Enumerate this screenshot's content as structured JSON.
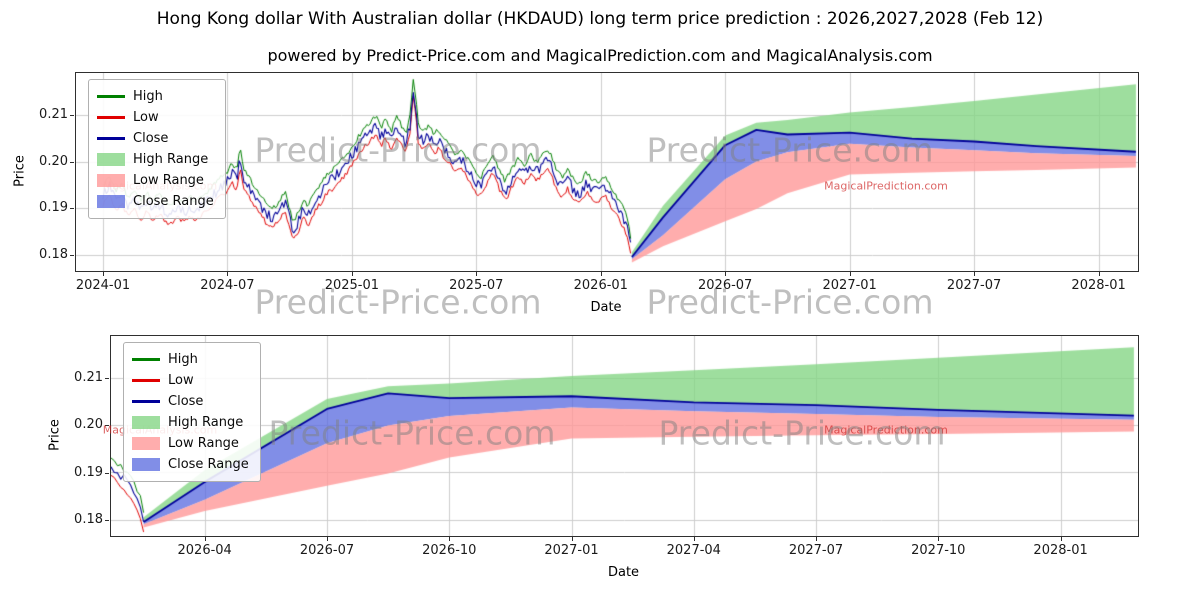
{
  "title": "Hong Kong dollar With Australian dollar (HKDAUD) long term price prediction : 2026,2027,2028 (Feb 12)",
  "subtitle": "powered by Predict-Price.com and MagicalPrediction.com and MagicalAnalysis.com",
  "watermark": {
    "text": "Predict-Price.com",
    "small_left": "MagicalAnalysis.com",
    "small_right": "MagicalPrediction.com"
  },
  "colors": {
    "high": "#008000",
    "low": "#e00000",
    "close": "#000099",
    "high_range": "rgba(134,214,134,0.8)",
    "low_range": "rgba(255,152,152,0.8)",
    "close_range": "rgba(93,110,224,0.78)",
    "grid": "#cccccc",
    "watermark": "rgba(128,128,128,0.5)",
    "watermark_red": "rgba(205,35,35,0.7)"
  },
  "legend": [
    {
      "label": "High",
      "type": "line",
      "color_key": "high"
    },
    {
      "label": "Low",
      "type": "line",
      "color_key": "low"
    },
    {
      "label": "Close",
      "type": "line",
      "color_key": "close"
    },
    {
      "label": "High Range",
      "type": "patch",
      "color_key": "high_range"
    },
    {
      "label": "Low Range",
      "type": "patch",
      "color_key": "low_range"
    },
    {
      "label": "Close Range",
      "type": "patch",
      "color_key": "close_range"
    }
  ],
  "chart_data": {
    "type": "line",
    "x_unit": "months since 2024-01",
    "series": {
      "history": {
        "names": [
          "High",
          "Low",
          "Close"
        ],
        "high_offset": 0.0015,
        "low_offset": 0.0015,
        "noise_amplitude": 0.0011,
        "close_keypoints": [
          [
            0,
            0.1928
          ],
          [
            0.3,
            0.1948
          ],
          [
            0.6,
            0.1915
          ],
          [
            0.9,
            0.1932
          ],
          [
            1.2,
            0.1902
          ],
          [
            1.5,
            0.1918
          ],
          [
            1.8,
            0.1895
          ],
          [
            2.1,
            0.1912
          ],
          [
            2.4,
            0.1897
          ],
          [
            2.7,
            0.1908
          ],
          [
            3,
            0.1893
          ],
          [
            3.3,
            0.1886
          ],
          [
            3.6,
            0.1899
          ],
          [
            3.9,
            0.1891
          ],
          [
            4.2,
            0.1903
          ],
          [
            4.5,
            0.1895
          ],
          [
            4.8,
            0.1907
          ],
          [
            5.1,
            0.1917
          ],
          [
            5.4,
            0.1932
          ],
          [
            5.7,
            0.1946
          ],
          [
            6,
            0.1957
          ],
          [
            6.2,
            0.1975
          ],
          [
            6.45,
            0.196
          ],
          [
            6.6,
            0.201
          ],
          [
            6.75,
            0.1968
          ],
          [
            7,
            0.1948
          ],
          [
            7.3,
            0.1924
          ],
          [
            7.6,
            0.1905
          ],
          [
            7.9,
            0.1887
          ],
          [
            8.2,
            0.1878
          ],
          [
            8.5,
            0.1894
          ],
          [
            8.8,
            0.1915
          ],
          [
            9,
            0.1878
          ],
          [
            9.15,
            0.1849
          ],
          [
            9.4,
            0.1868
          ],
          [
            9.65,
            0.1898
          ],
          [
            9.9,
            0.1884
          ],
          [
            10.2,
            0.1912
          ],
          [
            10.5,
            0.1931
          ],
          [
            10.8,
            0.1952
          ],
          [
            11.1,
            0.1964
          ],
          [
            11.4,
            0.1979
          ],
          [
            11.7,
            0.1992
          ],
          [
            12,
            0.2013
          ],
          [
            12.3,
            0.2031
          ],
          [
            12.6,
            0.2052
          ],
          [
            12.9,
            0.2066
          ],
          [
            13.15,
            0.2079
          ],
          [
            13.4,
            0.2054
          ],
          [
            13.65,
            0.2069
          ],
          [
            13.9,
            0.2044
          ],
          [
            14.15,
            0.2077
          ],
          [
            14.4,
            0.2056
          ],
          [
            14.6,
            0.2038
          ],
          [
            14.82,
            0.2082
          ],
          [
            14.95,
            0.2162
          ],
          [
            15.08,
            0.2118
          ],
          [
            15.2,
            0.2062
          ],
          [
            15.45,
            0.2045
          ],
          [
            15.7,
            0.2057
          ],
          [
            15.95,
            0.2038
          ],
          [
            16.2,
            0.2049
          ],
          [
            16.45,
            0.2028
          ],
          [
            16.7,
            0.2015
          ],
          [
            17,
            0.1996
          ],
          [
            17.3,
            0.2007
          ],
          [
            17.6,
            0.1983
          ],
          [
            17.9,
            0.1961
          ],
          [
            18.2,
            0.1943
          ],
          [
            18.5,
            0.1973
          ],
          [
            18.8,
            0.1996
          ],
          [
            19.1,
            0.1963
          ],
          [
            19.4,
            0.1937
          ],
          [
            19.7,
            0.1964
          ],
          [
            20,
            0.1985
          ],
          [
            20.3,
            0.1971
          ],
          [
            20.6,
            0.1995
          ],
          [
            20.9,
            0.1977
          ],
          [
            21.2,
            0.1996
          ],
          [
            21.5,
            0.2004
          ],
          [
            21.8,
            0.1969
          ],
          [
            22.1,
            0.1946
          ],
          [
            22.4,
            0.1961
          ],
          [
            22.7,
            0.1939
          ],
          [
            23,
            0.1929
          ],
          [
            23.3,
            0.1956
          ],
          [
            23.6,
            0.1941
          ],
          [
            23.9,
            0.1935
          ],
          [
            24.2,
            0.1946
          ],
          [
            24.5,
            0.1924
          ],
          [
            24.8,
            0.1903
          ],
          [
            25.05,
            0.1884
          ],
          [
            25.25,
            0.1861
          ],
          [
            25.4,
            0.1832
          ],
          [
            25.5,
            0.1797
          ]
        ]
      },
      "forecast": {
        "t": [
          25.5,
          27,
          30,
          31.5,
          33,
          36,
          39,
          42,
          45,
          49.8
        ],
        "close": [
          0.1795,
          0.188,
          0.2035,
          0.2068,
          0.2058,
          0.2062,
          0.2049,
          0.2043,
          0.2033,
          0.2021
        ],
        "high_upper": [
          0.1805,
          0.1905,
          0.2056,
          0.2083,
          0.2089,
          0.2105,
          0.2117,
          0.213,
          0.2144,
          0.2166
        ],
        "close_lower": [
          0.179,
          0.1842,
          0.1962,
          0.2,
          0.202,
          0.2038,
          0.203,
          0.2024,
          0.2018,
          0.2012
        ],
        "low_lower": [
          0.1783,
          0.1818,
          0.1872,
          0.1898,
          0.1932,
          0.1972,
          0.1976,
          0.1979,
          0.1982,
          0.1987
        ]
      }
    },
    "charts": [
      {
        "name": "history-and-forecast",
        "xlabel": "Date",
        "ylabel": "Price",
        "xlim": [
          -1.3,
          49.9
        ],
        "ylim": [
          0.1765,
          0.219
        ],
        "grid": true,
        "legend_position": "upper left",
        "xticks": [
          {
            "t": 0,
            "label": "2024-01"
          },
          {
            "t": 6,
            "label": "2024-07"
          },
          {
            "t": 12,
            "label": "2025-01"
          },
          {
            "t": 18,
            "label": "2025-07"
          },
          {
            "t": 24,
            "label": "2026-01"
          },
          {
            "t": 30,
            "label": "2026-07"
          },
          {
            "t": 36,
            "label": "2027-01"
          },
          {
            "t": 42,
            "label": "2027-07"
          },
          {
            "t": 48,
            "label": "2028-01"
          }
        ],
        "yticks": [
          {
            "v": 0.18,
            "label": "0.18"
          },
          {
            "v": 0.19,
            "label": "0.19"
          },
          {
            "v": 0.2,
            "label": "0.20"
          },
          {
            "v": 0.21,
            "label": "0.21"
          }
        ]
      },
      {
        "name": "forecast-detail",
        "xlabel": "Date",
        "ylabel": "Price",
        "xlim": [
          24.7,
          49.9
        ],
        "ylim": [
          0.1765,
          0.219
        ],
        "grid": true,
        "legend_position": "upper left",
        "xticks": [
          {
            "t": 27,
            "label": "2026-04"
          },
          {
            "t": 30,
            "label": "2026-07"
          },
          {
            "t": 33,
            "label": "2026-10"
          },
          {
            "t": 36,
            "label": "2027-01"
          },
          {
            "t": 39,
            "label": "2027-04"
          },
          {
            "t": 42,
            "label": "2027-07"
          },
          {
            "t": 45,
            "label": "2027-10"
          },
          {
            "t": 48,
            "label": "2028-01"
          }
        ],
        "yticks": [
          {
            "v": 0.18,
            "label": "0.18"
          },
          {
            "v": 0.19,
            "label": "0.19"
          },
          {
            "v": 0.2,
            "label": "0.20"
          },
          {
            "v": 0.21,
            "label": "0.21"
          }
        ]
      }
    ]
  }
}
